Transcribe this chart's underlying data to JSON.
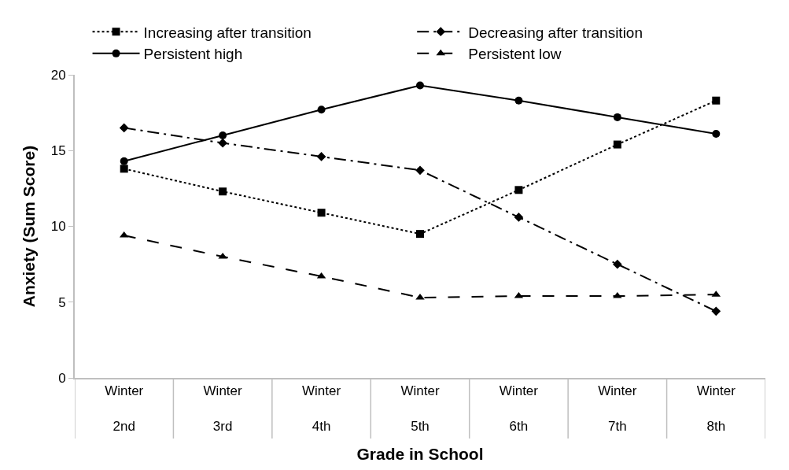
{
  "chart_data": {
    "type": "line",
    "xlabel": "Grade in School",
    "ylabel": "Anxiety (Sum Score)",
    "categories": [
      "Winter\n2nd",
      "Winter\n3rd",
      "Winter\n4th",
      "Winter\n5th",
      "Winter\n6th",
      "Winter\n7th",
      "Winter\n8th"
    ],
    "series": [
      {
        "name": "Increasing after transition",
        "color": "#000000",
        "marker": "square",
        "line_style": "dotted",
        "values": [
          13.8,
          12.3,
          10.9,
          9.5,
          12.4,
          15.4,
          18.3
        ]
      },
      {
        "name": "Decreasing after transition",
        "color": "#000000",
        "marker": "diamond",
        "line_style": "dashdot",
        "values": [
          16.5,
          15.5,
          14.6,
          13.7,
          10.6,
          7.5,
          4.4
        ]
      },
      {
        "name": "Persistent high",
        "color": "#000000",
        "marker": "circle",
        "line_style": "solid",
        "values": [
          14.3,
          16.0,
          17.7,
          19.3,
          18.3,
          17.2,
          16.1
        ]
      },
      {
        "name": "Persistent low",
        "color": "#000000",
        "marker": "triangle",
        "line_style": "dashed",
        "values": [
          9.4,
          8.0,
          6.7,
          5.3,
          5.4,
          5.4,
          5.5
        ]
      }
    ],
    "ylim": [
      0,
      20
    ],
    "yticks": [
      0,
      5,
      10,
      15,
      20
    ],
    "grid": false,
    "legend": "top"
  }
}
